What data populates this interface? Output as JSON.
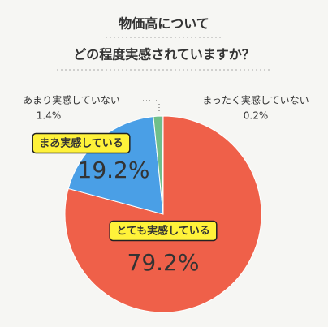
{
  "chart_data": {
    "type": "pie",
    "title": "物価高について",
    "subtitle": "どの程度実感されていますか？",
    "categories": [
      "とても実感している",
      "まあ実感している",
      "あまり実感していない",
      "まったく実感していない"
    ],
    "values": [
      79.2,
      19.2,
      1.4,
      0.2
    ],
    "value_labels": [
      "79.2%",
      "19.2%",
      "1.4%",
      "0.2%"
    ],
    "colors": [
      "#ef6049",
      "#4a9fe6",
      "#6fbf8a",
      "#c9c9c9"
    ]
  }
}
